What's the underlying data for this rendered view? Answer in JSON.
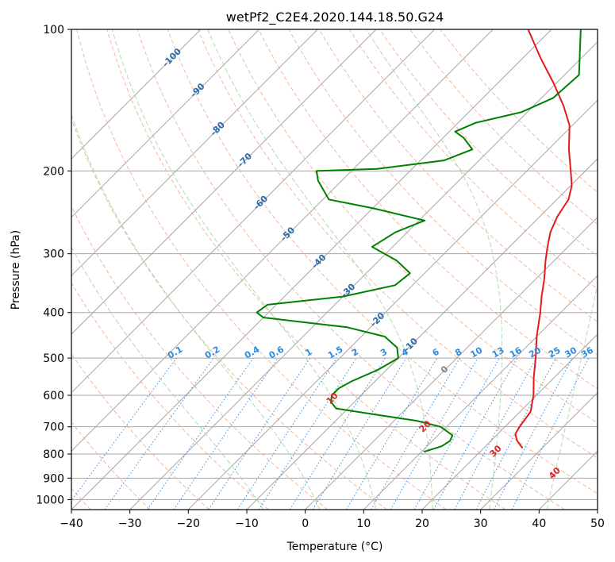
{
  "chart_data": {
    "type": "line",
    "subtype": "skew-t log-p diagram",
    "title": "wetPf2_C2E4.2020.144.18.50.G24",
    "xlabel": "Temperature (°C)",
    "ylabel": "Pressure (hPa)",
    "xlim": [
      -40,
      50
    ],
    "ylim": [
      1050,
      100
    ],
    "y_scale": "log",
    "grid": true,
    "x_ticks": [
      -40,
      -30,
      -20,
      -10,
      0,
      10,
      20,
      30,
      40,
      50
    ],
    "x_tick_labels": [
      "−40",
      "−30",
      "−20",
      "−10",
      "0",
      "10",
      "20",
      "30",
      "40",
      "50"
    ],
    "y_ticks": [
      100,
      200,
      300,
      400,
      500,
      600,
      700,
      800,
      900,
      1000
    ],
    "y_tick_labels": [
      "100",
      "200",
      "300",
      "400",
      "500",
      "600",
      "700",
      "800",
      "900",
      "1000"
    ],
    "series": [
      {
        "role": "temperature",
        "color": "#e41a1c",
        "points": [
          [
            775,
            26.5
          ],
          [
            750,
            24.5
          ],
          [
            725,
            23.0
          ],
          [
            700,
            22.5
          ],
          [
            650,
            21.8
          ],
          [
            600,
            19.5
          ],
          [
            550,
            16.5
          ],
          [
            500,
            13.5
          ],
          [
            450,
            10.0
          ],
          [
            400,
            6.5
          ],
          [
            370,
            4.0
          ],
          [
            340,
            1.5
          ],
          [
            310,
            -1.5
          ],
          [
            290,
            -3.5
          ],
          [
            270,
            -5.5
          ],
          [
            250,
            -7.0
          ],
          [
            230,
            -8.0
          ],
          [
            215,
            -9.8
          ],
          [
            200,
            -12.5
          ],
          [
            180,
            -16.5
          ],
          [
            160,
            -20.5
          ],
          [
            145,
            -25.0
          ],
          [
            130,
            -30.5
          ],
          [
            115,
            -37.0
          ],
          [
            100,
            -44.0
          ]
        ]
      },
      {
        "role": "dewpoint",
        "color": "#008000",
        "points": [
          [
            790,
            10.5
          ],
          [
            770,
            12.5
          ],
          [
            750,
            13.0
          ],
          [
            730,
            12.5
          ],
          [
            700,
            9.0
          ],
          [
            680,
            4.0
          ],
          [
            660,
            -4.0
          ],
          [
            640,
            -12.0
          ],
          [
            620,
            -14.0
          ],
          [
            600,
            -15.0
          ],
          [
            580,
            -15.0
          ],
          [
            560,
            -14.0
          ],
          [
            530,
            -11.5
          ],
          [
            500,
            -10.0
          ],
          [
            475,
            -12.0
          ],
          [
            450,
            -16.0
          ],
          [
            430,
            -24.0
          ],
          [
            410,
            -40.0
          ],
          [
            400,
            -42.0
          ],
          [
            385,
            -41.5
          ],
          [
            370,
            -30.0
          ],
          [
            350,
            -23.0
          ],
          [
            330,
            -22.5
          ],
          [
            310,
            -27.0
          ],
          [
            290,
            -33.5
          ],
          [
            270,
            -32.0
          ],
          [
            255,
            -29.0
          ],
          [
            240,
            -40.0
          ],
          [
            230,
            -49.0
          ],
          [
            210,
            -54.0
          ],
          [
            200,
            -56.0
          ],
          [
            198,
            -46.0
          ],
          [
            190,
            -36.0
          ],
          [
            180,
            -33.0
          ],
          [
            170,
            -36.5
          ],
          [
            165,
            -39.0
          ],
          [
            158,
            -37.0
          ],
          [
            150,
            -31.0
          ],
          [
            140,
            -28.0
          ],
          [
            125,
            -27.5
          ],
          [
            100,
            -35.0
          ]
        ]
      }
    ],
    "reference_lines": {
      "isotherms_C": [
        -100,
        -90,
        -80,
        -70,
        -60,
        -50,
        -40,
        -30,
        -20,
        -10,
        0,
        10,
        20,
        30,
        40,
        50
      ],
      "dry_adiabats_C": [
        -80,
        -70,
        -60,
        -50,
        -40,
        -30,
        -20,
        -10,
        0,
        10,
        20,
        30,
        40,
        50,
        60,
        70,
        80,
        90,
        100,
        110,
        120,
        130,
        140
      ],
      "moist_adiabats_C": [
        -10,
        0,
        10,
        20,
        30,
        40
      ],
      "mixing_ratios_gkg": [
        0.1,
        0.2,
        0.4,
        0.6,
        1,
        1.5,
        2,
        3,
        4,
        6,
        8,
        10,
        13,
        16,
        20,
        25,
        30,
        36
      ],
      "mixing_ratio_label_pressure": 500
    },
    "annotations": {
      "isotherm_labels": [
        {
          "value": -100,
          "text": "-100",
          "p": 115
        },
        {
          "value": -90,
          "text": "-90",
          "p": 135
        },
        {
          "value": -80,
          "text": "-80",
          "p": 163
        },
        {
          "value": -70,
          "text": "-70",
          "p": 190
        },
        {
          "value": -60,
          "text": "-60",
          "p": 234
        },
        {
          "value": -50,
          "text": "-50",
          "p": 273
        },
        {
          "value": -40,
          "text": "-40",
          "p": 312
        },
        {
          "value": -30,
          "text": "-30",
          "p": 360
        },
        {
          "value": -20,
          "text": "-20",
          "p": 415
        },
        {
          "value": -10,
          "text": "-10",
          "p": 470
        },
        {
          "value": 0,
          "text": "0",
          "p": 530
        }
      ],
      "moist_adiabat_labels": [
        {
          "value": 10,
          "text": "10",
          "p": 610
        },
        {
          "value": 20,
          "text": "20",
          "p": 700
        },
        {
          "value": 30,
          "text": "30",
          "p": 790
        },
        {
          "value": 40,
          "text": "40",
          "p": 880
        }
      ],
      "mixing_ratio_labels": [
        "0.1",
        "0.2",
        "0.4",
        "0.6",
        "1",
        "1.5",
        "2",
        "3",
        "4",
        "6",
        "8",
        "10",
        "13",
        "16",
        "20",
        "25",
        "30",
        "36"
      ]
    },
    "colors": {
      "isotherm_grid": "#a6a6a6",
      "dry_adiabat": "#f4a582",
      "moist_adiabat": "#a6d8a6",
      "mixing_ratio": "#3c8fe0",
      "isotherm_label": "#2b6aa8",
      "moist_label": "#d62728",
      "mixing_label": "#2c8be0",
      "zero_label": "#808080",
      "special_isotherm": "#d9c4a0"
    }
  }
}
